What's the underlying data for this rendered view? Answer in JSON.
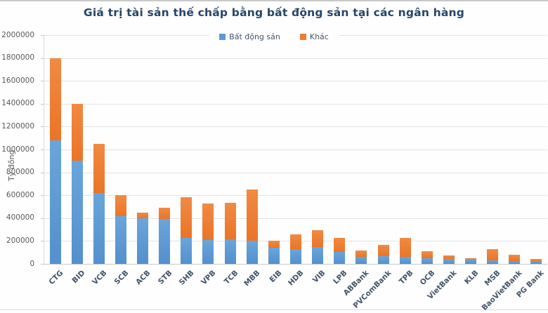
{
  "title": "Giá trị tài sản thế chấp bằng bất động sản tại các ngân hàng",
  "colors": {
    "bds": "#5B9BD5",
    "khac": "#ED7D31",
    "title_text": "#254669",
    "axis_tick_text": "#595959",
    "category_text": "#44546A",
    "gridline": "#E2E2E2"
  },
  "legend": [
    {
      "label": "Bất động sản",
      "color": "#5B9BD5"
    },
    {
      "label": "Khác",
      "color": "#ED7D31"
    }
  ],
  "y_axis": {
    "title": "Tỷ đồng",
    "tick_labels": [
      "2000000",
      "1800000",
      "1600000",
      "1400000",
      "1200000",
      "1000000",
      "800000",
      "600000",
      "400000",
      "200000",
      "0"
    ]
  },
  "chart_data": {
    "type": "bar",
    "stacked": true,
    "title": "Giá trị tài sản thế chấp bằng bất động sản tại các ngân hàng",
    "xlabel": "",
    "ylabel": "Tỷ đồng",
    "ylim": [
      0,
      2000000
    ],
    "ytick_step": 200000,
    "grid": true,
    "legend_position": "top",
    "categories": [
      "CTG",
      "BID",
      "VCB",
      "SCB",
      "ACB",
      "STB",
      "SHB",
      "VPB",
      "TCB",
      "MBB",
      "EIB",
      "HDB",
      "VIB",
      "LPB",
      "ABBank",
      "PVComBank",
      "TPB",
      "OCB",
      "VietBank",
      "KLB",
      "MSB",
      "BaoVietBank",
      "PG Bank"
    ],
    "series": [
      {
        "name": "Bất động sản",
        "color": "#5B9BD5",
        "values": [
          1080000,
          900000,
          620000,
          420000,
          400000,
          395000,
          230000,
          210000,
          215000,
          200000,
          140000,
          130000,
          145000,
          105000,
          60000,
          65000,
          60000,
          50000,
          40000,
          42000,
          30000,
          22000,
          16000
        ]
      },
      {
        "name": "Khác",
        "color": "#ED7D31",
        "values": [
          720000,
          500000,
          430000,
          180000,
          50000,
          95000,
          355000,
          315000,
          320000,
          450000,
          60000,
          130000,
          150000,
          125000,
          55000,
          100000,
          165000,
          60000,
          32000,
          6000,
          100000,
          56000,
          25000
        ]
      }
    ]
  }
}
